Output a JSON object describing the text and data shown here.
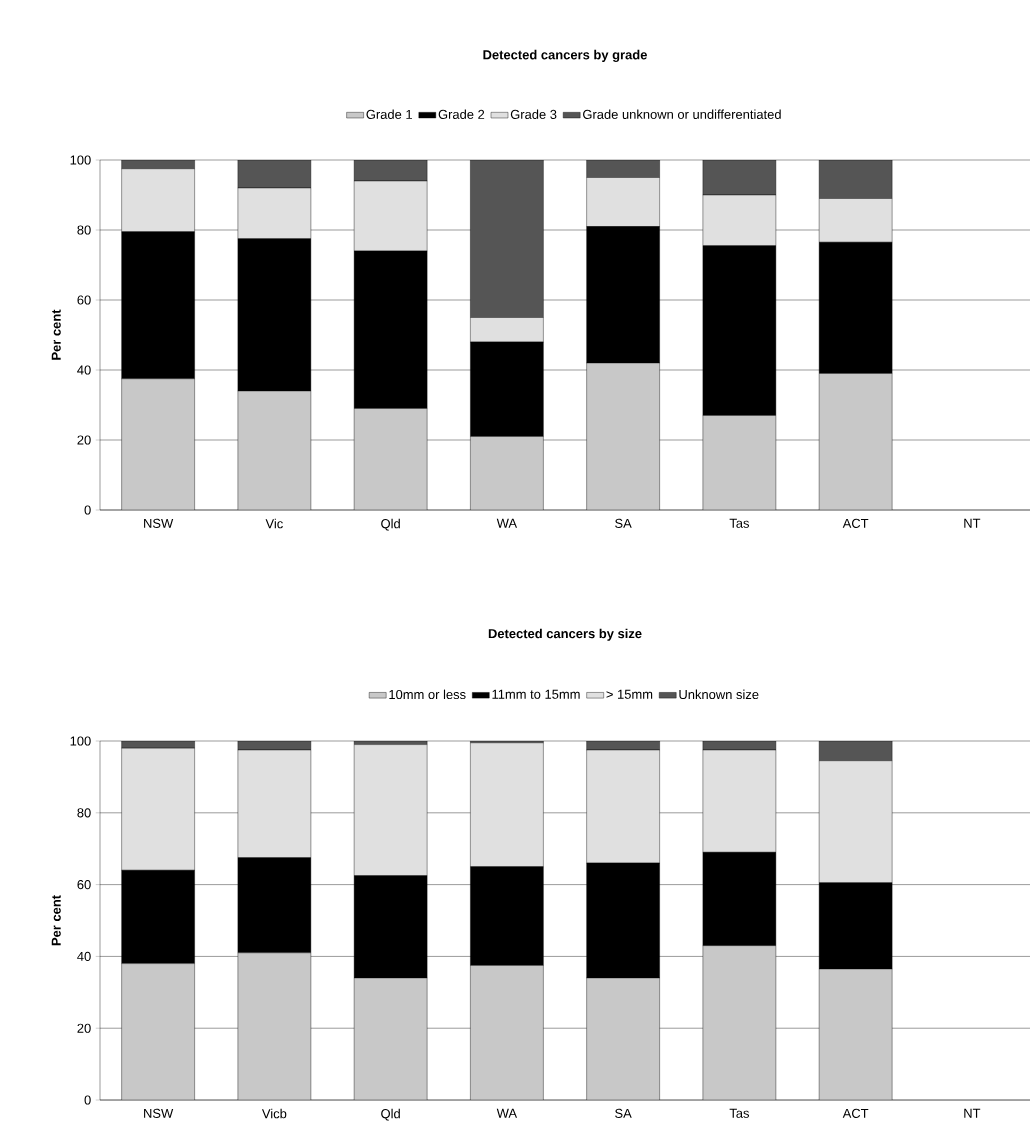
{
  "chart_data": [
    {
      "type": "bar",
      "title": "Detected cancers by grade",
      "ylabel": "Per cent",
      "stacked": true,
      "legend": "top",
      "grid": "y",
      "categories": [
        "NSW",
        "Vic",
        "Qld",
        "WA",
        "SA",
        "Tas",
        "ACT",
        "NT"
      ],
      "ylim": [
        0,
        100
      ],
      "yticks": [
        0,
        20,
        40,
        60,
        80,
        100
      ],
      "series": [
        {
          "name": "Grade 1",
          "color": "#c8c8c8",
          "values": [
            37.5,
            34,
            29,
            21,
            42,
            27,
            39,
            null
          ]
        },
        {
          "name": "Grade 2",
          "color": "#000000",
          "values": [
            42,
            43.5,
            45,
            27,
            39,
            48.5,
            37.5,
            null
          ]
        },
        {
          "name": "Grade 3",
          "color": "#e0e0e0",
          "values": [
            18,
            14.5,
            20,
            7,
            14,
            14.5,
            12.5,
            null
          ]
        },
        {
          "name": "Grade unknown or undifferentiated",
          "color": "#555555",
          "values": [
            2.5,
            8,
            6,
            45,
            5,
            10,
            11,
            null
          ]
        }
      ]
    },
    {
      "type": "bar",
      "title": "Detected cancers by size",
      "ylabel": "Per cent",
      "stacked": true,
      "legend": "top",
      "grid": "y",
      "categories": [
        "NSW",
        "Vicb",
        "Qld",
        "WA",
        "SA",
        "Tas",
        "ACT",
        "NT"
      ],
      "ylim": [
        0,
        100
      ],
      "yticks": [
        0,
        20,
        40,
        60,
        80,
        100
      ],
      "series": [
        {
          "name": "10mm or less",
          "color": "#c8c8c8",
          "values": [
            38,
            41,
            34,
            37.5,
            34,
            43,
            36.5,
            null
          ]
        },
        {
          "name": "11mm to 15mm",
          "color": "#000000",
          "values": [
            26,
            26.5,
            28.5,
            27.5,
            32,
            26,
            24,
            null
          ]
        },
        {
          "name": "> 15mm",
          "color": "#e0e0e0",
          "values": [
            34,
            30,
            36.5,
            34.5,
            31.5,
            28.5,
            34,
            null
          ]
        },
        {
          "name": "Unknown size",
          "color": "#555555",
          "values": [
            2,
            2.5,
            1,
            0.5,
            2.5,
            2.5,
            5.5,
            null
          ]
        }
      ]
    }
  ]
}
